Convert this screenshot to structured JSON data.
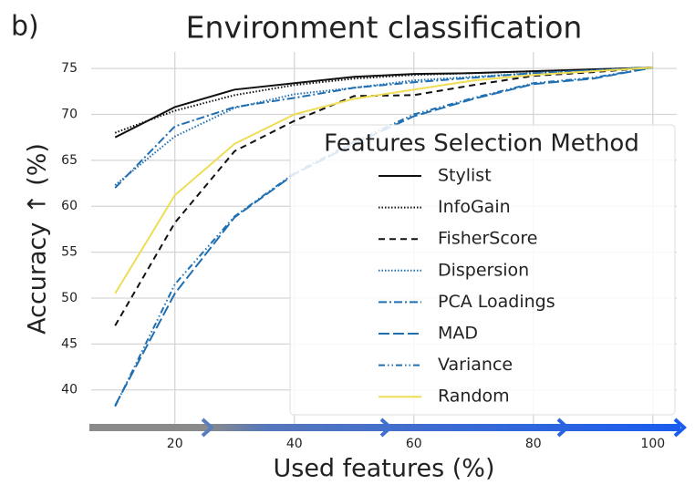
{
  "panel_label": "b)",
  "chart_data": {
    "type": "line",
    "title": "Environment classification",
    "x_label": "Used features (%)",
    "y_label": "Accuracy  ↑  (%)",
    "x": [
      10,
      20,
      30,
      40,
      50,
      60,
      70,
      80,
      90,
      100
    ],
    "xlim": [
      6,
      104
    ],
    "xticks": [
      20,
      40,
      60,
      80,
      100
    ],
    "ylim": [
      36.3,
      76.8
    ],
    "yticks": [
      40,
      45,
      50,
      55,
      60,
      65,
      70,
      75
    ],
    "grid": true,
    "legend_title": "Features Selection Method",
    "legend_position": "lower right",
    "series": [
      {
        "name": "Stylist",
        "color": "#111111",
        "dash": "solid",
        "values": [
          67.5,
          70.8,
          72.7,
          73.4,
          74.1,
          74.4,
          74.5,
          74.7,
          74.9,
          75.1
        ]
      },
      {
        "name": "InfoGain",
        "color": "#111111",
        "dash": "dotted",
        "values": [
          68,
          70.4,
          72.1,
          73.2,
          73.9,
          74.3,
          74.5,
          74.7,
          74.9,
          75.1
        ]
      },
      {
        "name": "FisherScore",
        "color": "#111111",
        "dash": "dashed",
        "values": [
          47,
          58.2,
          66,
          69.3,
          72,
          72.1,
          73.2,
          74.2,
          74.6,
          75.1
        ]
      },
      {
        "name": "Dispersion",
        "color": "#1f6fb2",
        "dash": "dotted",
        "values": [
          62.3,
          67.6,
          70.7,
          72.2,
          72.9,
          73.7,
          74.1,
          74.5,
          74.8,
          75.1
        ]
      },
      {
        "name": "PCA Loadings",
        "color": "#1f6fb2",
        "dash": "dashdot",
        "values": [
          62,
          68.7,
          70.8,
          71.8,
          72.9,
          73.5,
          74,
          74.5,
          74.8,
          75.1
        ]
      },
      {
        "name": "MAD",
        "color": "#1f6fb2",
        "dash": "longdash",
        "values": [
          38.3,
          50.5,
          58.8,
          63.5,
          66.8,
          69.8,
          71.7,
          73.3,
          73.9,
          75.1
        ]
      },
      {
        "name": "Variance",
        "color": "#1f6fb2",
        "dash": "dashdotdot",
        "values": [
          38.2,
          51.5,
          58.9,
          63.6,
          67,
          70,
          71.8,
          73.4,
          74.0,
          75.1
        ]
      },
      {
        "name": "Random",
        "color": "#eedd55",
        "dash": "solid",
        "values": [
          50.5,
          61.2,
          66.8,
          70,
          71.7,
          72.7,
          73.7,
          74.3,
          74.7,
          75.1
        ]
      }
    ]
  }
}
